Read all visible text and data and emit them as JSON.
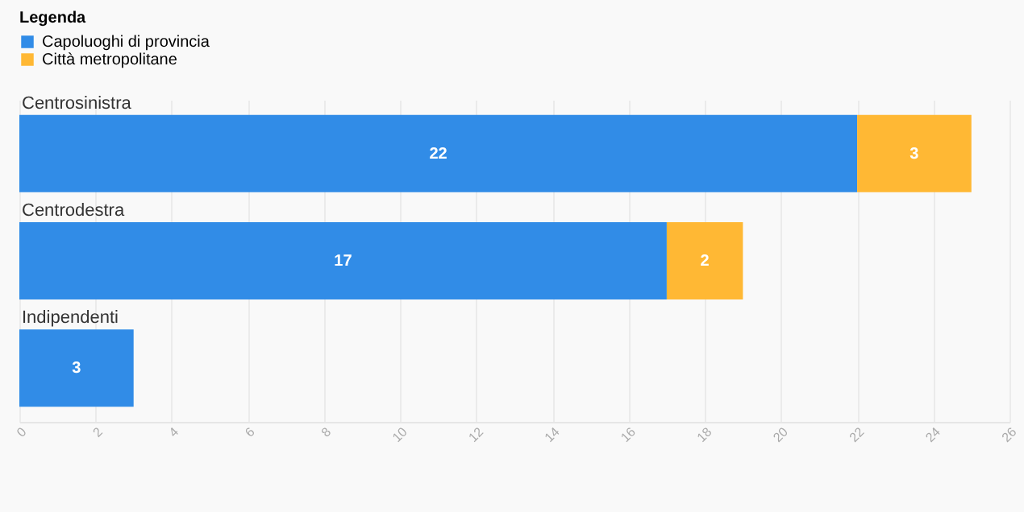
{
  "chart_data": {
    "type": "bar",
    "orientation": "horizontal",
    "stacked": true,
    "legend_title": "Legenda",
    "categories": [
      "Centrosinistra",
      "Centrodestra",
      "Indipendenti"
    ],
    "series": [
      {
        "name": "Capoluoghi di provincia",
        "color": "#318ce7",
        "values": [
          22,
          17,
          3
        ]
      },
      {
        "name": "Città metropolitane",
        "color": "#ffb834",
        "values": [
          3,
          2,
          null
        ]
      }
    ],
    "xlim": [
      0,
      26
    ],
    "xticks": [
      0,
      2,
      4,
      6,
      8,
      10,
      12,
      14,
      16,
      18,
      20,
      22,
      24,
      26
    ],
    "grid": "x",
    "legend": "top left",
    "data_labels": true
  }
}
